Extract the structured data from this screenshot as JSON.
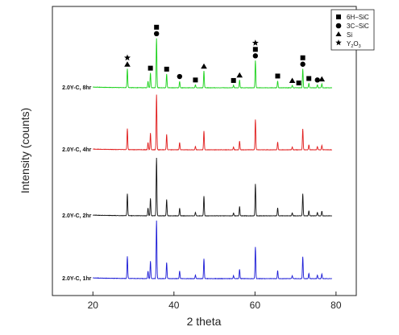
{
  "chart_data": {
    "type": "line",
    "xlabel": "2 theta",
    "ylabel": "Intensity (counts)",
    "xlim": [
      10,
      85
    ],
    "xticks": [
      20,
      40,
      60,
      80
    ],
    "y_ticks_labeled": false,
    "grid": false,
    "legend_position": "top-right",
    "legend": [
      {
        "marker": "square",
        "label": "6H−SiC"
      },
      {
        "marker": "circle",
        "label": "3C−SiC"
      },
      {
        "marker": "triangle",
        "label": "Si"
      },
      {
        "marker": "star",
        "label": "Y",
        "sub": "2",
        "mid": "O",
        "sub2": "3"
      }
    ],
    "x_range": [
      20,
      79
    ],
    "peaks": [
      {
        "x": 28.5,
        "h": 0.38
      },
      {
        "x": 33.6,
        "h": 0.13
      },
      {
        "x": 34.2,
        "h": 0.3
      },
      {
        "x": 35.7,
        "h": 1.0
      },
      {
        "x": 38.2,
        "h": 0.28
      },
      {
        "x": 41.4,
        "h": 0.13
      },
      {
        "x": 45.3,
        "h": 0.06
      },
      {
        "x": 47.4,
        "h": 0.34
      },
      {
        "x": 54.7,
        "h": 0.05
      },
      {
        "x": 56.2,
        "h": 0.16
      },
      {
        "x": 60.1,
        "h": 0.55
      },
      {
        "x": 65.6,
        "h": 0.14
      },
      {
        "x": 69.2,
        "h": 0.05
      },
      {
        "x": 71.8,
        "h": 0.38
      },
      {
        "x": 73.3,
        "h": 0.09
      },
      {
        "x": 75.4,
        "h": 0.06
      },
      {
        "x": 76.5,
        "h": 0.08
      }
    ],
    "series": [
      {
        "name": "2.0Y-C, 1hr",
        "color": "#1a1ad6",
        "height_scale": 1.0
      },
      {
        "name": "2.0Y-C, 2hr",
        "color": "#111111",
        "height_scale": 1.0
      },
      {
        "name": "2.0Y-C, 4hr",
        "color": "#e01a1a",
        "height_scale": 0.95
      },
      {
        "name": "2.0Y-C, 8hr",
        "color": "#19d119",
        "height_scale": 0.85
      }
    ],
    "peak_markers": [
      {
        "x": 28.5,
        "symbols": [
          "star",
          "triangle"
        ]
      },
      {
        "x": 34.2,
        "symbols": [
          "square"
        ]
      },
      {
        "x": 35.7,
        "symbols": [
          "square",
          "circle"
        ]
      },
      {
        "x": 38.2,
        "symbols": [
          "square"
        ]
      },
      {
        "x": 41.4,
        "symbols": [
          "circle"
        ]
      },
      {
        "x": 45.3,
        "symbols": [
          "square"
        ]
      },
      {
        "x": 47.4,
        "symbols": [
          "triangle"
        ]
      },
      {
        "x": 54.7,
        "symbols": [
          "square"
        ]
      },
      {
        "x": 56.2,
        "symbols": [
          "triangle"
        ]
      },
      {
        "x": 60.1,
        "symbols": [
          "star",
          "square",
          "circle"
        ]
      },
      {
        "x": 65.6,
        "symbols": [
          "square"
        ]
      },
      {
        "x": 69.2,
        "symbols": [
          "triangle"
        ]
      },
      {
        "x": 70.8,
        "symbols": [
          "square"
        ]
      },
      {
        "x": 71.8,
        "symbols": [
          "square",
          "circle"
        ]
      },
      {
        "x": 73.3,
        "symbols": [
          "square"
        ]
      },
      {
        "x": 75.4,
        "symbols": [
          "circle"
        ]
      },
      {
        "x": 76.5,
        "symbols": [
          "triangle"
        ]
      }
    ]
  }
}
